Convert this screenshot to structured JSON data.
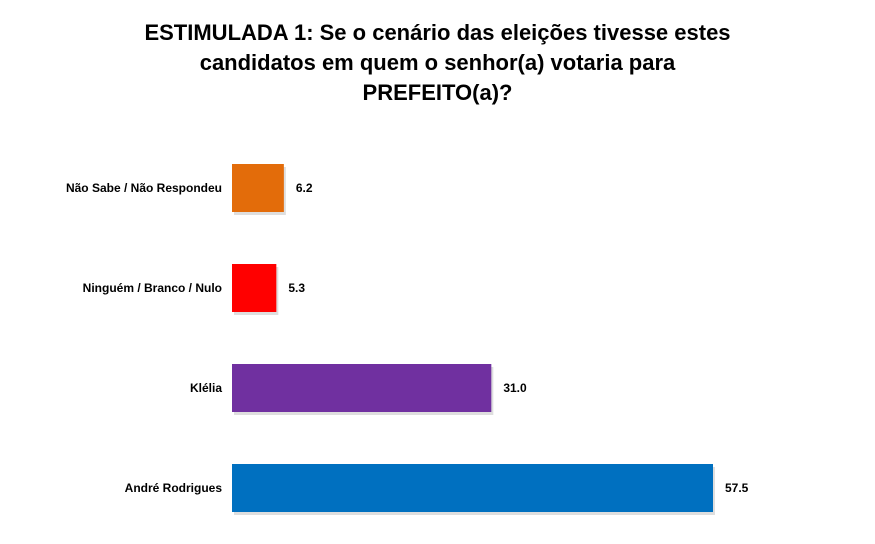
{
  "chart_data": {
    "type": "bar",
    "orientation": "horizontal",
    "title_lines": [
      "ESTIMULADA 1: Se o cenário das eleições tivesse estes",
      "candidatos em quem o senhor(a) votaria para",
      "PREFEITO(a)?"
    ],
    "categories": [
      "Não Sabe / Não Respondeu",
      "Ninguém / Branco / Nulo",
      "Klélia",
      "André Rodrigues"
    ],
    "values": [
      6.2,
      5.3,
      31.0,
      57.5
    ],
    "value_labels": [
      "6.2",
      "5.3",
      "31.0",
      "57.5"
    ],
    "colors": [
      "#E36C0A",
      "#FF0000",
      "#7030A0",
      "#0070C0"
    ],
    "xlabel": "",
    "ylabel": "",
    "xlim": [
      0,
      57.5
    ],
    "grid": false,
    "legend": "none"
  }
}
